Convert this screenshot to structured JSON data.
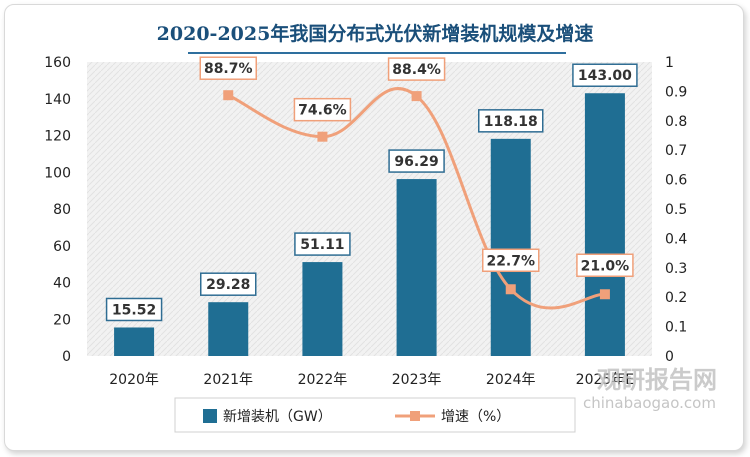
{
  "chart_data": {
    "type": "bar",
    "title": "2020-2025年我国分布式光伏新增装机规模及增速",
    "categories": [
      "2020年",
      "2021年",
      "2022年",
      "2023年",
      "2024年",
      "2025年E"
    ],
    "series": [
      {
        "name": "新增装机（GW）",
        "type": "bar",
        "axis": "left",
        "values": [
          15.52,
          29.28,
          51.11,
          96.29,
          118.18,
          143.0
        ],
        "labels": [
          "15.52",
          "29.28",
          "51.11",
          "96.29",
          "118.18",
          "143.00"
        ],
        "color": "#1f6e93"
      },
      {
        "name": "增速（%）",
        "type": "line",
        "axis": "right",
        "values": [
          null,
          0.887,
          0.746,
          0.884,
          0.227,
          0.21
        ],
        "labels": [
          null,
          "88.7%",
          "74.6%",
          "88.4%",
          "22.7%",
          "21.0%"
        ],
        "color": "#f0a07a"
      }
    ],
    "y_left": {
      "ylim": [
        0,
        160
      ],
      "ticks": [
        "0",
        "20",
        "40",
        "60",
        "80",
        "100",
        "120",
        "140",
        "160"
      ]
    },
    "y_right": {
      "ylim": [
        0,
        1
      ],
      "ticks": [
        "0",
        "0.1",
        "0.2",
        "0.3",
        "0.4",
        "0.5",
        "0.6",
        "0.7",
        "0.8",
        "0.9",
        "1"
      ]
    },
    "legend": [
      "新增装机（GW）",
      "增速（%）"
    ]
  },
  "watermark": {
    "cn": "观研报告网",
    "en": "chinabaogao.com"
  }
}
